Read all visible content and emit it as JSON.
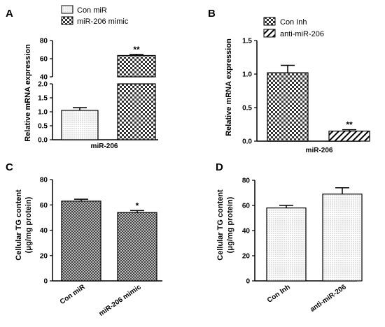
{
  "chart_data": [
    {
      "panel": "A",
      "type": "bar",
      "xlabel": "miR-206",
      "ylabel": "Relative mRNA expression",
      "axis_break": true,
      "lower_ticks": [
        "0.0",
        "0.5",
        "1.0",
        "1.5",
        "2.0"
      ],
      "upper_ticks": [
        "40",
        "60",
        "80"
      ],
      "legend": [
        "Con miR",
        "miR-206 mimic"
      ],
      "series": [
        {
          "name": "Con miR",
          "value": 1.05,
          "error": 0.1,
          "pattern": "dots"
        },
        {
          "name": "miR-206 mimic",
          "value": 63.5,
          "error": 1.2,
          "pattern": "check",
          "significance": "**"
        }
      ]
    },
    {
      "panel": "B",
      "type": "bar",
      "xlabel": "miR-206",
      "ylabel": "Relative mRNA expression",
      "ylim": [
        0,
        1.5
      ],
      "ticks": [
        "0.0",
        "0.5",
        "1.0",
        "1.5"
      ],
      "legend": [
        "Con Inh",
        "anti-miR-206"
      ],
      "series": [
        {
          "name": "Con Inh",
          "value": 1.02,
          "error": 0.11,
          "pattern": "check"
        },
        {
          "name": "anti-miR-206",
          "value": 0.15,
          "error": 0.02,
          "pattern": "hatch",
          "significance": "**"
        }
      ]
    },
    {
      "panel": "C",
      "type": "bar",
      "ylabel_line1": "Cellular TG content",
      "ylabel_line2": "(μg/mg protein)",
      "ylim": [
        0,
        80
      ],
      "ticks": [
        "0",
        "20",
        "40",
        "60",
        "80"
      ],
      "categories": [
        "Con miR",
        "miR-206 mimic"
      ],
      "values": [
        63,
        54
      ],
      "errors": [
        1.5,
        1.5
      ],
      "significance": [
        "",
        "*"
      ],
      "pattern": "check-fine"
    },
    {
      "panel": "D",
      "type": "bar",
      "ylabel_line1": "Cellular TG content",
      "ylabel_line2": "(μg/mg protein)",
      "ylim": [
        0,
        80
      ],
      "ticks": [
        "0",
        "20",
        "40",
        "60",
        "80"
      ],
      "categories": [
        "Con Inh",
        "anti-miR-206"
      ],
      "values": [
        58,
        69
      ],
      "errors": [
        2,
        5
      ],
      "significance": [
        "",
        ""
      ],
      "pattern": "dots"
    }
  ]
}
